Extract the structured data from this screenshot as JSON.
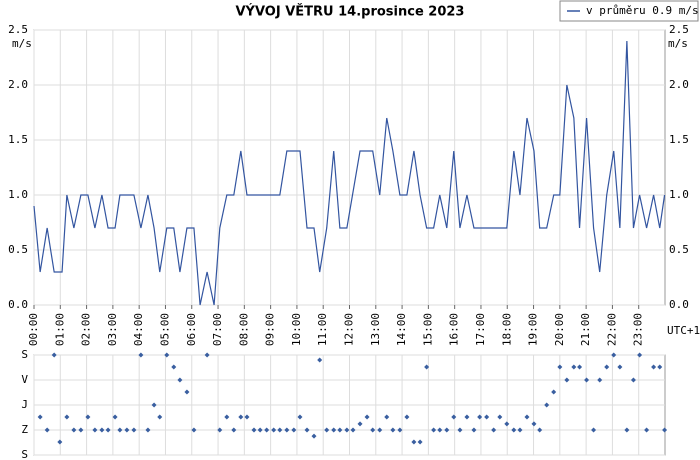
{
  "chart_data": [
    {
      "type": "line",
      "title": "VÝVOJ VĚTRU  14.prosince 2023",
      "y_label": "m/s",
      "x_label": "UTC+1",
      "grid": true,
      "legend": "upper right",
      "xlim": [
        0,
        1440
      ],
      "xticks": [
        {
          "value": 0,
          "label": "00:00"
        },
        {
          "value": 60,
          "label": "01:00"
        },
        {
          "value": 120,
          "label": "02:00"
        },
        {
          "value": 180,
          "label": "03:00"
        },
        {
          "value": 240,
          "label": "04:00"
        },
        {
          "value": 300,
          "label": "05:00"
        },
        {
          "value": 360,
          "label": "06:00"
        },
        {
          "value": 420,
          "label": "07:00"
        },
        {
          "value": 480,
          "label": "08:00"
        },
        {
          "value": 540,
          "label": "09:00"
        },
        {
          "value": 600,
          "label": "10:00"
        },
        {
          "value": 660,
          "label": "11:00"
        },
        {
          "value": 720,
          "label": "12:00"
        },
        {
          "value": 780,
          "label": "13:00"
        },
        {
          "value": 840,
          "label": "14:00"
        },
        {
          "value": 900,
          "label": "15:00"
        },
        {
          "value": 960,
          "label": "16:00"
        },
        {
          "value": 1020,
          "label": "17:00"
        },
        {
          "value": 1080,
          "label": "18:00"
        },
        {
          "value": 1140,
          "label": "19:00"
        },
        {
          "value": 1200,
          "label": "20:00"
        },
        {
          "value": 1260,
          "label": "21:00"
        },
        {
          "value": 1320,
          "label": "22:00"
        },
        {
          "value": 1380,
          "label": "23:00"
        }
      ],
      "ylim": [
        0,
        2.5
      ],
      "yticks": [
        {
          "value": 0,
          "label": "0.0"
        },
        0.5,
        {
          "value": 1,
          "label": "1.0"
        },
        1.5,
        {
          "value": 2,
          "label": "2.0"
        },
        2.5
      ],
      "series": [
        {
          "name": "v průměru 0.9 m/s",
          "color": "#3355a0",
          "x": [
            0,
            14,
            30,
            46,
            64,
            75,
            91,
            107,
            123,
            139,
            155,
            169,
            185,
            196,
            228,
            244,
            260,
            274,
            287,
            303,
            319,
            333,
            349,
            365,
            379,
            395,
            411,
            424,
            440,
            456,
            472,
            486,
            561,
            577,
            607,
            623,
            639,
            652,
            668,
            684,
            698,
            714,
            744,
            773,
            789,
            805,
            819,
            835,
            851,
            867,
            881,
            896,
            912,
            926,
            942,
            958,
            972,
            988,
            1004,
            1079,
            1095,
            1109,
            1125,
            1141,
            1154,
            1170,
            1186,
            1200,
            1216,
            1232,
            1245,
            1261,
            1277,
            1291,
            1307,
            1323,
            1337,
            1353,
            1368,
            1382,
            1398,
            1414,
            1428,
            1439
          ],
          "values": [
            0.9,
            0.3,
            0.7,
            0.3,
            0.3,
            1.0,
            0.7,
            1.0,
            1.0,
            0.7,
            1.0,
            0.7,
            0.7,
            1.0,
            1.0,
            0.7,
            1.0,
            0.7,
            0.3,
            0.7,
            0.7,
            0.3,
            0.7,
            0.7,
            0.0,
            0.3,
            0.0,
            0.7,
            1.0,
            1.0,
            1.4,
            1.0,
            1.0,
            1.4,
            1.4,
            0.7,
            0.7,
            0.3,
            0.7,
            1.4,
            0.7,
            0.7,
            1.4,
            1.4,
            1.0,
            1.7,
            1.4,
            1.0,
            1.0,
            1.4,
            1.0,
            0.7,
            0.7,
            1.0,
            0.7,
            1.4,
            0.7,
            1.0,
            0.7,
            0.7,
            1.4,
            1.0,
            1.7,
            1.4,
            0.7,
            0.7,
            1.0,
            1.0,
            2.0,
            1.7,
            0.7,
            1.7,
            0.7,
            0.3,
            1.0,
            1.4,
            0.7,
            2.4,
            0.7,
            1.0,
            0.7,
            1.0,
            0.7,
            1.0
          ]
        }
      ]
    },
    {
      "type": "scatter",
      "color": "#3a5fa0",
      "grid": true,
      "xlim": [
        0,
        1440
      ],
      "ylim": [
        360,
        0
      ],
      "yticks": [
        {
          "value": 0,
          "label": "S"
        },
        {
          "value": 90,
          "label": "V"
        },
        {
          "value": 180,
          "label": "J"
        },
        {
          "value": 270,
          "label": "Z"
        },
        {
          "value": 360,
          "label": "S"
        }
      ],
      "x": [
        14,
        30,
        46,
        59,
        75,
        91,
        107,
        123,
        139,
        155,
        169,
        185,
        196,
        212,
        228,
        244,
        260,
        274,
        287,
        303,
        319,
        333,
        349,
        365,
        395,
        424,
        440,
        456,
        472,
        486,
        502,
        516,
        531,
        547,
        561,
        577,
        593,
        607,
        623,
        639,
        652,
        668,
        684,
        698,
        714,
        728,
        744,
        760,
        773,
        789,
        805,
        819,
        835,
        851,
        867,
        881,
        896,
        912,
        926,
        942,
        958,
        972,
        988,
        1004,
        1017,
        1033,
        1049,
        1063,
        1079,
        1095,
        1109,
        1125,
        1141,
        1154,
        1170,
        1186,
        1200,
        1216,
        1232,
        1245,
        1261,
        1277,
        1291,
        1307,
        1323,
        1337,
        1353,
        1368,
        1382,
        1398,
        1414,
        1428,
        1439
      ],
      "values": [
        223,
        270,
        0,
        313,
        223,
        270,
        270,
        223,
        270,
        270,
        270,
        223,
        270,
        270,
        270,
        0,
        270,
        180,
        223,
        0,
        43,
        90,
        133,
        270,
        0,
        270,
        223,
        270,
        223,
        223,
        270,
        270,
        270,
        270,
        270,
        270,
        270,
        223,
        270,
        292,
        18,
        270,
        270,
        270,
        270,
        270,
        248,
        223,
        270,
        270,
        223,
        270,
        270,
        223,
        313,
        313,
        43,
        270,
        270,
        270,
        223,
        270,
        223,
        270,
        223,
        223,
        270,
        223,
        248,
        270,
        270,
        223,
        248,
        270,
        180,
        133,
        43,
        90,
        43,
        43,
        90,
        270,
        90,
        43,
        0,
        43,
        270,
        90,
        0,
        270,
        43,
        43,
        270
      ]
    }
  ]
}
